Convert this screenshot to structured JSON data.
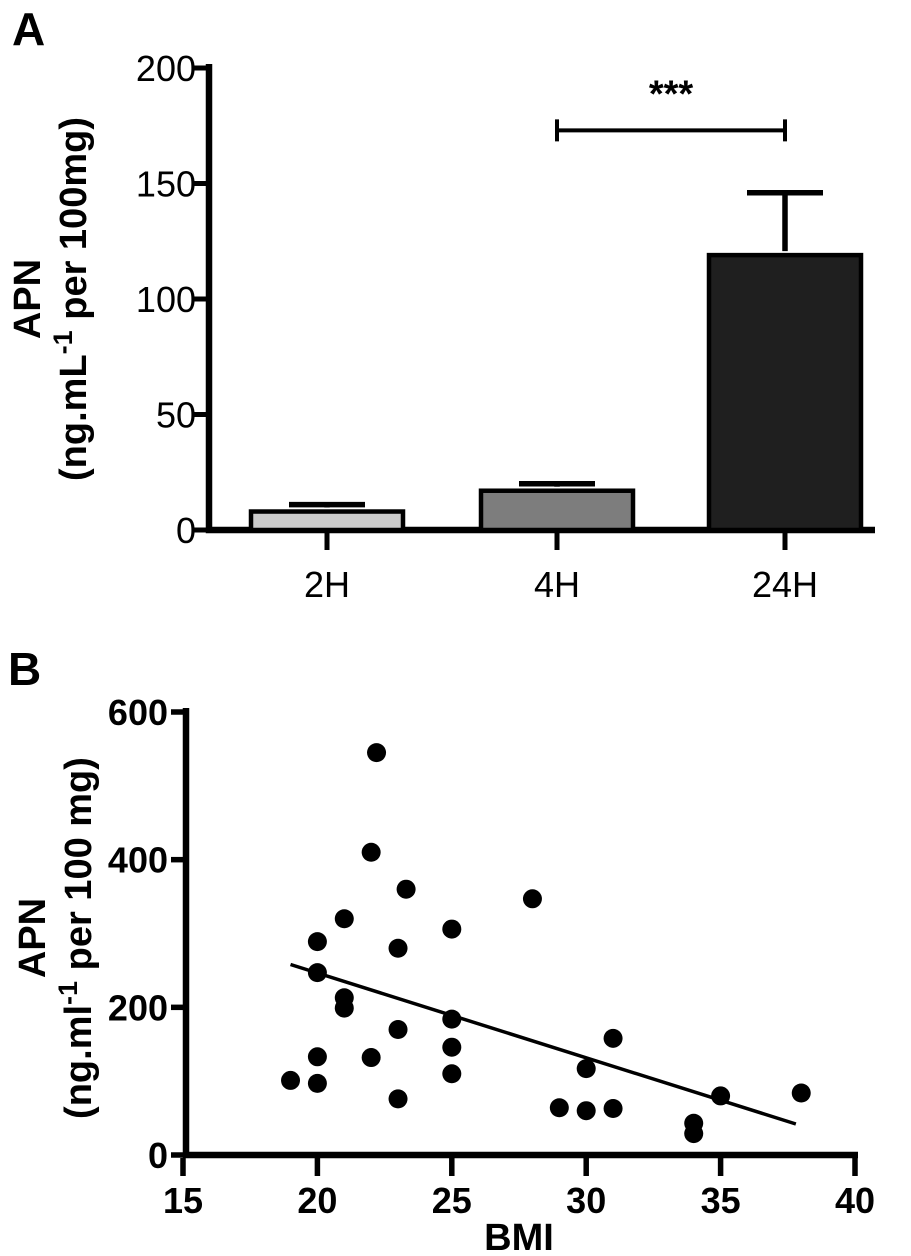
{
  "figure": {
    "panel_a_label": "A",
    "panel_b_label": "B"
  },
  "chart_data": [
    {
      "type": "bar",
      "panel": "A",
      "title": "",
      "categories": [
        "2H",
        "4H",
        "24H"
      ],
      "values": [
        8,
        17,
        119
      ],
      "errors_upper": [
        3,
        3,
        27
      ],
      "bar_colors": [
        "#cbcbcb",
        "#7d7d7d",
        "#1f1f1f"
      ],
      "ylabel_line1": "APN",
      "ylabel_line2": {
        "pre": "(ng.mL",
        "sup": "-1",
        "post": " per 100mg)"
      },
      "xlabel": "",
      "ylim": [
        0,
        200
      ],
      "yticks": [
        0,
        50,
        100,
        150,
        200
      ],
      "grid": false,
      "legend": null,
      "significance": {
        "label": "***",
        "from_category": "4H",
        "to_category": "24H",
        "bracket_y_value": 173
      }
    },
    {
      "type": "scatter",
      "panel": "B",
      "title": "",
      "xlabel": "BMI",
      "ylabel_line1": "APN",
      "ylabel_line2": {
        "pre": "(ng.ml",
        "sup": "-1",
        "post": " per 100 mg)"
      },
      "xlim": [
        15,
        40
      ],
      "ylim": [
        0,
        600
      ],
      "xticks": [
        15,
        20,
        25,
        30,
        35,
        40
      ],
      "yticks": [
        0,
        200,
        400,
        600
      ],
      "grid": false,
      "legend": null,
      "points": [
        [
          22.2,
          545
        ],
        [
          22,
          410
        ],
        [
          23.3,
          360
        ],
        [
          21,
          320
        ],
        [
          20,
          289
        ],
        [
          28,
          347
        ],
        [
          25,
          306
        ],
        [
          23,
          280
        ],
        [
          20,
          247
        ],
        [
          21,
          213
        ],
        [
          21,
          199
        ],
        [
          23,
          170
        ],
        [
          25,
          184
        ],
        [
          25,
          146
        ],
        [
          25,
          110
        ],
        [
          20,
          133
        ],
        [
          22,
          132
        ],
        [
          19,
          101
        ],
        [
          20,
          97
        ],
        [
          23,
          76
        ],
        [
          31,
          158
        ],
        [
          30,
          117
        ],
        [
          29,
          64
        ],
        [
          30,
          60
        ],
        [
          31,
          63
        ],
        [
          34,
          43
        ],
        [
          34,
          29
        ],
        [
          35,
          80
        ],
        [
          38,
          84
        ]
      ],
      "trendline": {
        "x1": 19.0,
        "y1": 258,
        "x2": 37.8,
        "y2": 42
      }
    }
  ]
}
